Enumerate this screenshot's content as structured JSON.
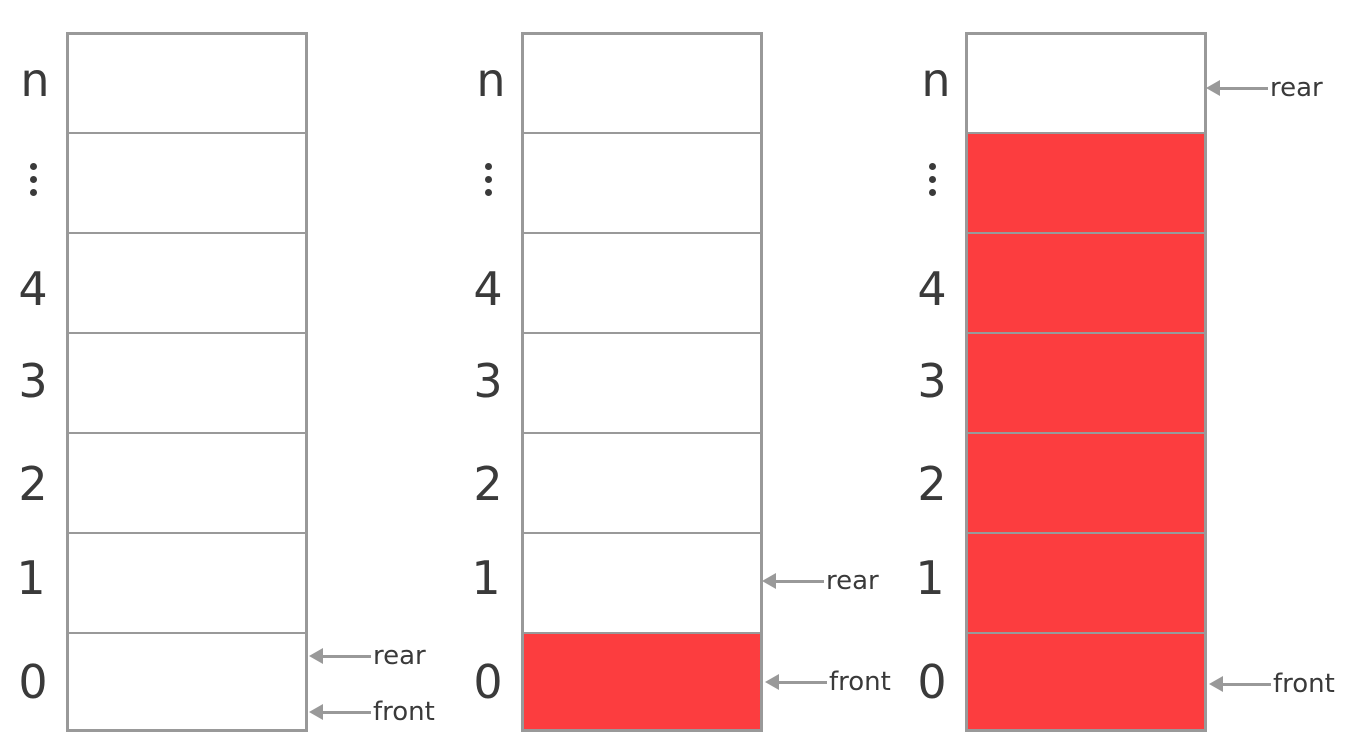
{
  "row_labels": [
    "n",
    "…",
    "4",
    "3",
    "2",
    "1",
    "0"
  ],
  "colors": {
    "border": "#999999",
    "filled": "#fc3d3f",
    "text": "#3a3a3a"
  },
  "pointers": {
    "rear": "rear",
    "front": "front"
  },
  "queues": [
    {
      "filled_slots": [],
      "rear_label": "rear",
      "front_label": "front"
    },
    {
      "filled_slots": [
        "0"
      ],
      "rear_label": "rear",
      "front_label": "front"
    },
    {
      "filled_slots": [
        "0",
        "1",
        "2",
        "3",
        "4",
        "…"
      ],
      "rear_label": "rear",
      "front_label": "front"
    }
  ]
}
